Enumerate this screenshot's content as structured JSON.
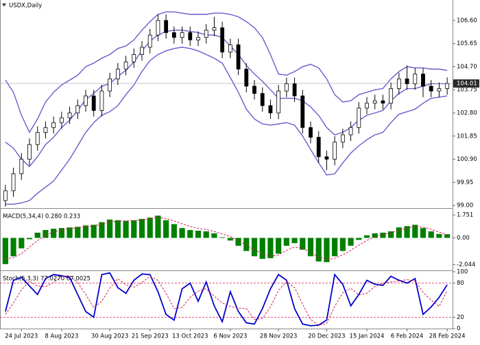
{
  "chart_data": [
    {
      "type": "candlestick",
      "title": "USDX,Daily",
      "color": "#000000",
      "open": [
        99.2,
        99.6,
        100.3,
        100.9,
        101.5,
        102.0,
        102.2,
        102.4,
        102.6,
        102.8,
        103.1,
        103.5,
        102.9,
        103.7,
        104.2,
        104.6,
        104.9,
        105.2,
        105.5,
        106.0,
        106.6,
        106.1,
        105.9,
        106.1,
        105.8,
        105.9,
        106.2,
        106.3,
        105.3,
        105.6,
        104.6,
        103.9,
        103.6,
        103.1,
        102.8,
        103.7,
        104.0,
        103.5,
        102.2,
        101.8,
        101.0,
        100.9,
        101.6,
        101.9,
        102.2,
        103.0,
        103.2,
        103.3,
        103.2,
        103.8,
        104.2,
        104.0,
        104.4,
        103.9,
        103.7,
        103.8
      ],
      "high": [
        99.85,
        100.55,
        101.15,
        101.75,
        102.25,
        102.45,
        102.65,
        102.85,
        103.05,
        103.35,
        103.75,
        103.75,
        103.95,
        104.45,
        104.85,
        105.15,
        105.45,
        105.75,
        106.25,
        106.85,
        106.85,
        106.35,
        106.35,
        106.35,
        106.15,
        106.45,
        106.75,
        106.55,
        105.85,
        105.85,
        104.85,
        104.15,
        103.85,
        103.35,
        103.95,
        104.25,
        104.25,
        103.75,
        102.45,
        102.05,
        101.25,
        101.85,
        102.15,
        102.45,
        103.25,
        103.45,
        103.55,
        103.55,
        104.05,
        104.45,
        104.75,
        104.65,
        104.65,
        104.15,
        104.05,
        104.26
      ],
      "low": [
        98.95,
        99.35,
        100.05,
        100.65,
        101.25,
        101.75,
        101.95,
        102.15,
        102.35,
        102.55,
        102.85,
        102.65,
        102.65,
        103.45,
        103.95,
        104.35,
        104.65,
        104.95,
        105.25,
        105.75,
        105.85,
        105.65,
        105.65,
        105.55,
        105.55,
        105.65,
        105.95,
        105.05,
        105.05,
        104.35,
        103.65,
        103.35,
        102.85,
        102.55,
        102.55,
        103.45,
        103.25,
        101.95,
        101.55,
        100.75,
        100.45,
        100.65,
        101.35,
        101.65,
        101.95,
        102.75,
        102.95,
        102.95,
        102.95,
        103.55,
        103.75,
        103.75,
        103.45,
        103.45,
        103.45,
        103.55
      ],
      "close": [
        99.6,
        100.3,
        100.9,
        101.5,
        102.0,
        102.2,
        102.4,
        102.6,
        102.8,
        103.1,
        103.5,
        102.9,
        103.7,
        104.2,
        104.6,
        104.9,
        105.2,
        105.5,
        106.0,
        106.6,
        106.1,
        105.9,
        106.1,
        105.8,
        105.9,
        106.2,
        106.3,
        105.3,
        105.6,
        104.6,
        103.9,
        103.6,
        103.1,
        102.8,
        103.7,
        104.0,
        103.5,
        102.2,
        101.8,
        101.0,
        100.9,
        101.6,
        101.9,
        102.2,
        103.0,
        103.2,
        103.3,
        103.2,
        103.8,
        104.2,
        104.0,
        104.4,
        103.9,
        103.7,
        103.8,
        104.01
      ],
      "bands": {
        "color": "#6a5acd",
        "upper": [
          104.15,
          103.65,
          102.7,
          102.0,
          102.55,
          103.25,
          103.65,
          103.95,
          104.15,
          104.35,
          104.7,
          104.85,
          105.05,
          105.2,
          105.45,
          105.55,
          105.8,
          106.2,
          106.55,
          106.85,
          106.95,
          106.95,
          106.9,
          106.85,
          106.85,
          106.85,
          106.9,
          106.9,
          106.85,
          106.75,
          106.55,
          106.3,
          105.9,
          105.2,
          104.4,
          104.35,
          104.5,
          104.7,
          104.8,
          104.65,
          104.2,
          103.55,
          103.25,
          103.3,
          103.55,
          103.65,
          103.75,
          103.8,
          104.2,
          104.5,
          104.7,
          104.65,
          104.65,
          104.6,
          104.6,
          104.55
        ],
        "middle": [
          101.6,
          101.35,
          100.9,
          100.6,
          101.0,
          101.5,
          101.8,
          102.2,
          102.5,
          102.9,
          103.35,
          103.6,
          103.9,
          104.0,
          104.3,
          104.55,
          104.9,
          105.35,
          105.75,
          106.0,
          106.15,
          106.2,
          106.2,
          106.15,
          106.1,
          106.0,
          106.0,
          105.9,
          105.55,
          105.2,
          104.75,
          104.4,
          104.1,
          103.75,
          103.4,
          103.4,
          103.4,
          103.3,
          103.05,
          102.7,
          102.2,
          101.9,
          102.0,
          102.2,
          102.5,
          102.7,
          102.8,
          102.9,
          103.3,
          103.6,
          103.8,
          103.8,
          103.9,
          104.0,
          104.0,
          104.0
        ],
        "lower": [
          99.05,
          99.05,
          99.1,
          99.2,
          99.5,
          99.75,
          100.0,
          100.45,
          100.9,
          101.45,
          102.0,
          102.4,
          102.7,
          102.85,
          103.1,
          103.55,
          103.95,
          104.5,
          104.95,
          105.2,
          105.35,
          105.45,
          105.5,
          105.45,
          105.35,
          105.2,
          105.05,
          104.85,
          104.25,
          103.65,
          102.95,
          102.55,
          102.35,
          102.3,
          102.35,
          102.4,
          102.3,
          101.85,
          101.3,
          100.75,
          100.25,
          100.3,
          100.75,
          101.15,
          101.45,
          101.7,
          101.9,
          102.0,
          102.4,
          102.75,
          102.85,
          102.95,
          103.2,
          103.4,
          103.45,
          103.5
        ]
      },
      "last_price": 104.01,
      "ylim": [
        98.89,
        107.44
      ],
      "yticks": [
        {
          "value": 106.6,
          "label": "106.60"
        },
        {
          "value": 105.65,
          "label": "105.65"
        },
        {
          "value": 104.7,
          "label": "104.70"
        },
        {
          "value": 103.75,
          "label": "103.75"
        },
        {
          "value": 102.8,
          "label": "102.80"
        },
        {
          "value": 101.85,
          "label": "101.85"
        },
        {
          "value": 100.9,
          "label": "100.90"
        },
        {
          "value": 99.95,
          "label": "99.95"
        },
        {
          "value": 99.0,
          "label": "99.00"
        }
      ]
    },
    {
      "type": "macd",
      "title": "MACD(5,34,4) 0.280 0.233",
      "histogram": {
        "color": "#008000",
        "values": [
          -2.0,
          -1.4,
          -0.8,
          -0.1,
          0.4,
          0.6,
          0.7,
          0.75,
          0.8,
          0.85,
          0.95,
          1.0,
          1.2,
          1.4,
          1.35,
          1.3,
          1.35,
          1.45,
          1.55,
          1.7,
          1.35,
          1.05,
          0.75,
          0.6,
          0.55,
          0.5,
          0.35,
          0.05,
          -0.2,
          -0.6,
          -1.0,
          -1.4,
          -1.6,
          -1.55,
          -1.2,
          -0.6,
          -0.4,
          -0.9,
          -1.4,
          -1.8,
          -1.85,
          -1.4,
          -1.0,
          -0.6,
          -0.15,
          0.2,
          0.35,
          0.4,
          0.5,
          0.8,
          0.9,
          1.0,
          0.75,
          0.5,
          0.3,
          0.28
        ]
      },
      "signal": {
        "color": "#d02050",
        "values": [
          -1.6,
          -1.5,
          -1.2,
          -0.7,
          -0.2,
          0.2,
          0.45,
          0.6,
          0.7,
          0.78,
          0.85,
          0.92,
          1.05,
          1.2,
          1.28,
          1.3,
          1.32,
          1.38,
          1.46,
          1.57,
          1.48,
          1.3,
          1.08,
          0.88,
          0.73,
          0.63,
          0.5,
          0.3,
          0.1,
          -0.2,
          -0.55,
          -0.9,
          -1.2,
          -1.4,
          -1.3,
          -0.95,
          -0.7,
          -0.8,
          -1.1,
          -1.45,
          -1.65,
          -1.55,
          -1.3,
          -0.95,
          -0.55,
          -0.2,
          0.1,
          0.25,
          0.38,
          0.58,
          0.75,
          0.88,
          0.82,
          0.66,
          0.45,
          0.233
        ]
      },
      "ylim": [
        -2.48,
        2.17
      ],
      "yticks": [
        1.751,
        {
          "value": 0,
          "label": "0.00"
        },
        -2.044
      ]
    },
    {
      "type": "stochastic",
      "title": "Stoch(5,3,3) 77.0270 67.0025",
      "series": [
        {
          "color": "#0000cc",
          "values": [
            30,
            85,
            90,
            75,
            60,
            88,
            95,
            93,
            90,
            60,
            30,
            20,
            95,
            98,
            72,
            62,
            85,
            96,
            95,
            65,
            25,
            15,
            70,
            80,
            48,
            82,
            40,
            12,
            65,
            30,
            10,
            8,
            35,
            70,
            95,
            85,
            35,
            8,
            5,
            6,
            15,
            95,
            78,
            40,
            60,
            85,
            78,
            76,
            92,
            85,
            80,
            88,
            25,
            38,
            55,
            77.027
          ]
        },
        {
          "color": "#d02050",
          "dashed": true,
          "values": [
            25,
            45,
            68,
            83,
            75,
            74,
            81,
            92,
            93,
            81,
            60,
            37,
            48,
            71,
            88,
            77,
            73,
            81,
            92,
            85,
            62,
            35,
            37,
            55,
            66,
            70,
            57,
            45,
            39,
            36,
            35,
            16,
            18,
            38,
            67,
            83,
            72,
            43,
            16,
            6,
            9,
            39,
            63,
            71,
            59,
            62,
            74,
            80,
            82,
            84,
            86,
            84,
            64,
            50,
            39,
            67.0025
          ]
        }
      ],
      "levels": [
        80,
        20
      ],
      "level_color": "#d02050",
      "ylim": [
        0,
        100
      ],
      "yticks": [
        100,
        80,
        20,
        0
      ],
      "categories": [
        null,
        null,
        "24 Jul 2023",
        null,
        null,
        null,
        null,
        "8 Aug 2023",
        null,
        null,
        null,
        null,
        null,
        "30 Aug 2023",
        null,
        null,
        null,
        null,
        "21 Sep 2023",
        null,
        null,
        null,
        null,
        "13 Oct 2023",
        null,
        null,
        null,
        null,
        "6 Nov 2023",
        null,
        null,
        null,
        null,
        null,
        "28 Nov 2023",
        null,
        null,
        null,
        null,
        null,
        "20 Dec 2023",
        null,
        null,
        null,
        null,
        "15 Jan 2024",
        null,
        null,
        null,
        null,
        "6 Feb 2024",
        null,
        null,
        null,
        null,
        "28 Feb 2024"
      ]
    }
  ]
}
